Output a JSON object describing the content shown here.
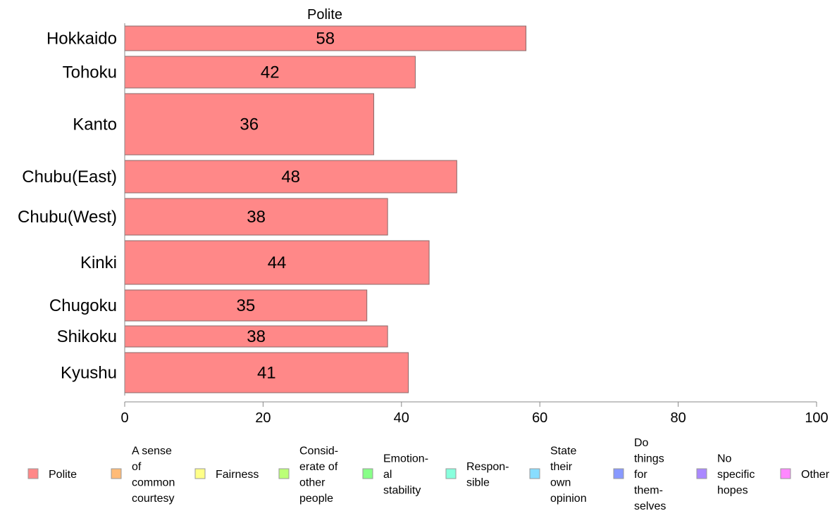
{
  "chart_data": {
    "type": "bar",
    "orientation": "horizontal",
    "title": "Polite",
    "categories": [
      "Hokkaido",
      "Tohoku",
      "Kanto",
      "Chubu(East)",
      "Chubu(West)",
      "Kinki",
      "Chugoku",
      "Shikoku",
      "Kyushu"
    ],
    "series": [
      {
        "name": "Polite",
        "color": "#ff8888",
        "values": [
          58,
          42,
          36,
          48,
          38,
          44,
          35,
          38,
          41
        ]
      }
    ],
    "bar_value_labels": [
      "58",
      "42",
      "36",
      "48",
      "38",
      "44",
      "35",
      "38",
      "41"
    ],
    "xlim": [
      0,
      100
    ],
    "xticks": [
      0,
      20,
      40,
      60,
      80,
      100
    ],
    "xtick_labels": [
      "0",
      "20",
      "40",
      "60",
      "80",
      "100"
    ],
    "grid": false,
    "legend_position": "bottom",
    "legend": [
      {
        "label": "Polite",
        "color": "#ff8888"
      },
      {
        "label": "A sense of common courtesy",
        "color": "#ffbb77"
      },
      {
        "label": "Fairness",
        "color": "#ffff88"
      },
      {
        "label": "Consid-erate of other people",
        "color": "#bbff77"
      },
      {
        "label": "Emotion-al stability",
        "color": "#88ff88"
      },
      {
        "label": "Respon-sible",
        "color": "#88ffdd"
      },
      {
        "label": "State their own opinion",
        "color": "#88ddff"
      },
      {
        "label": "Do things for them-selves",
        "color": "#8899ff"
      },
      {
        "label": "No specific hopes",
        "color": "#aa88ff"
      },
      {
        "label": "Other",
        "color": "#ff88ff"
      }
    ]
  }
}
